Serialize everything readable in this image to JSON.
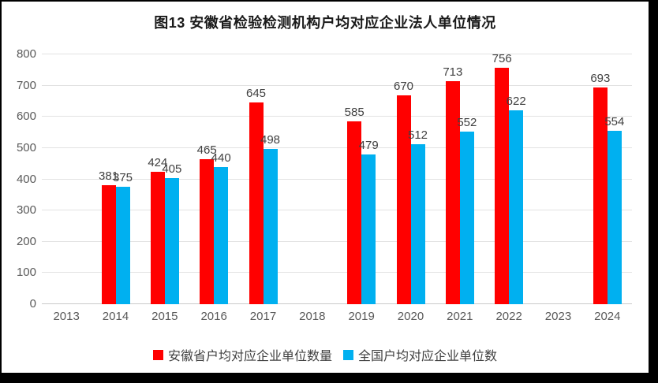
{
  "chart_data": {
    "type": "bar",
    "title": "图13 安徽省检验检测机构户均对应企业法人单位情况",
    "categories": [
      "2013",
      "2014",
      "2015",
      "2016",
      "2017",
      "2018",
      "2019",
      "2020",
      "2021",
      "2022",
      "2023",
      "2024"
    ],
    "series": [
      {
        "name": "安徽省户均对应企业单位数量",
        "color": "#ff0000",
        "values": [
          null,
          381,
          424,
          465,
          645,
          null,
          585,
          670,
          713,
          756,
          null,
          693
        ]
      },
      {
        "name": "全国户均对应企业单位数",
        "color": "#00b0f0",
        "values": [
          null,
          375,
          405,
          440,
          498,
          null,
          479,
          512,
          552,
          622,
          null,
          554
        ]
      }
    ],
    "ylim": [
      0,
      800
    ],
    "ytick_step": 100,
    "yticks": [
      0,
      100,
      200,
      300,
      400,
      500,
      600,
      700,
      800
    ],
    "xlabel": "",
    "ylabel": "",
    "grid": true,
    "legend_position": "bottom",
    "data_labels": true
  },
  "colors": {
    "background": "#ffffff",
    "frame": "#000000",
    "gridline": "#e2e2e2",
    "axis_line": "#c9c9c9",
    "axis_text": "#595959",
    "data_label_text": "#404040",
    "title_text": "#1a1a1a"
  }
}
